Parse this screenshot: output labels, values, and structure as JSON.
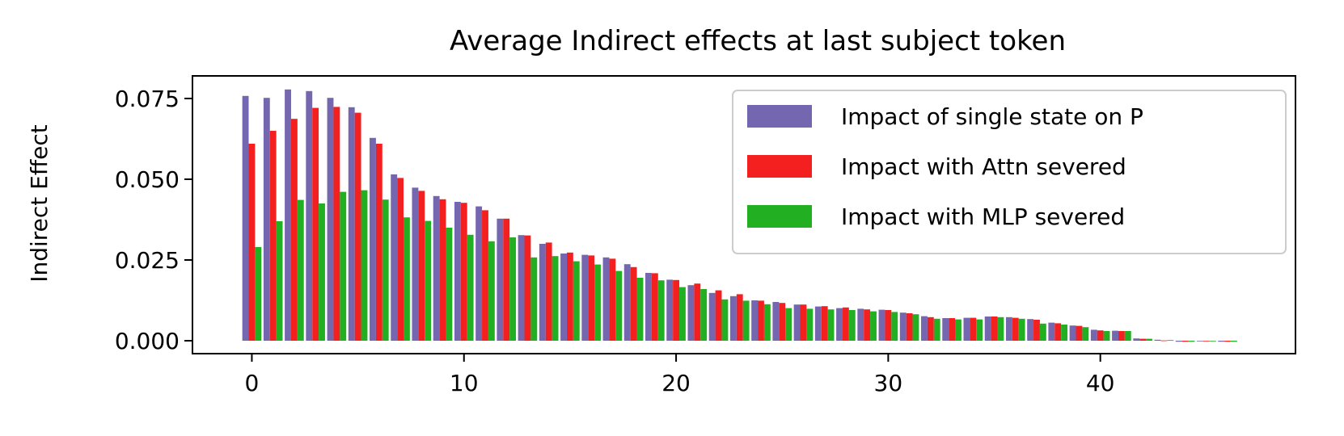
{
  "chart_data": {
    "type": "bar",
    "title": "Average Indirect effects at last subject token",
    "ylabel": "Indirect Effect",
    "xlabel": "",
    "x": [
      0,
      1,
      2,
      3,
      4,
      5,
      6,
      7,
      8,
      9,
      10,
      11,
      12,
      13,
      14,
      15,
      16,
      17,
      18,
      19,
      20,
      21,
      22,
      23,
      24,
      25,
      26,
      27,
      28,
      29,
      30,
      31,
      32,
      33,
      34,
      35,
      36,
      37,
      38,
      39,
      40,
      41,
      42,
      43,
      44,
      45,
      46
    ],
    "xticks": [
      "0",
      "10",
      "20",
      "30",
      "40"
    ],
    "yticks": [
      "0.000",
      "0.025",
      "0.050",
      "0.075"
    ],
    "ylim": [
      -0.004,
      0.082
    ],
    "xlim": [
      -2.8,
      49.2
    ],
    "grid": false,
    "legend_position": "top-right",
    "series": [
      {
        "name": "Impact of single state on P",
        "color": "#7566b0",
        "values": [
          0.0758,
          0.0752,
          0.0778,
          0.0773,
          0.0752,
          0.0723,
          0.0628,
          0.0515,
          0.0474,
          0.0448,
          0.043,
          0.0416,
          0.0378,
          0.0327,
          0.03,
          0.027,
          0.0266,
          0.0258,
          0.0237,
          0.021,
          0.0189,
          0.0172,
          0.0148,
          0.0138,
          0.0125,
          0.012,
          0.0112,
          0.0106,
          0.0101,
          0.0099,
          0.0096,
          0.0087,
          0.0076,
          0.007,
          0.0071,
          0.0075,
          0.0073,
          0.0067,
          0.0056,
          0.0047,
          0.0034,
          0.0031,
          0.0007,
          0.0003,
          -0.0003,
          -0.0001,
          -0.0003
        ]
      },
      {
        "name": "Impact with Attn severed",
        "color": "#f42020",
        "values": [
          0.061,
          0.065,
          0.0687,
          0.0721,
          0.0724,
          0.0706,
          0.061,
          0.0504,
          0.0464,
          0.0438,
          0.0427,
          0.0404,
          0.0378,
          0.0326,
          0.0304,
          0.0273,
          0.0264,
          0.0254,
          0.0228,
          0.0209,
          0.0188,
          0.0177,
          0.0156,
          0.0144,
          0.0124,
          0.0117,
          0.0112,
          0.0107,
          0.0103,
          0.0097,
          0.0095,
          0.0085,
          0.0073,
          0.007,
          0.0071,
          0.0075,
          0.0071,
          0.0065,
          0.0054,
          0.0046,
          0.0032,
          0.003,
          0.0006,
          0.0001,
          -0.0003,
          -0.0001,
          -0.0003
        ]
      },
      {
        "name": "Impact with MLP severed",
        "color": "#22b022",
        "values": [
          0.029,
          0.037,
          0.0436,
          0.0425,
          0.0461,
          0.0466,
          0.0437,
          0.0382,
          0.0371,
          0.035,
          0.0328,
          0.0308,
          0.032,
          0.0258,
          0.0262,
          0.0246,
          0.0236,
          0.0216,
          0.0195,
          0.0187,
          0.0166,
          0.016,
          0.0128,
          0.0124,
          0.0113,
          0.0101,
          0.0099,
          0.0097,
          0.0095,
          0.0091,
          0.0089,
          0.0082,
          0.0068,
          0.0066,
          0.0066,
          0.0073,
          0.0068,
          0.0053,
          0.005,
          0.0042,
          0.003,
          0.003,
          0.0006,
          0.0002,
          -0.0003,
          -0.0001,
          -0.0003
        ]
      }
    ]
  }
}
